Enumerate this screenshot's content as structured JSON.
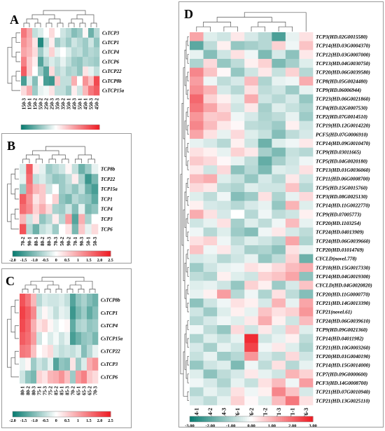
{
  "palette": [
    "#0b7d72",
    "#ffffff",
    "#ef1d25"
  ],
  "panels": [
    {
      "id": "A",
      "label": "A",
      "rows": [
        "CsTCP3",
        "CsTCP1",
        "CsTCP4",
        "CsTCP6",
        "CsTCP22",
        "CsTCP8b",
        "CsTCP15a"
      ],
      "cols": [
        "150-3",
        "150-1",
        "150-2",
        "550-2",
        "250-2",
        "250-3",
        "350-3",
        "350-2",
        "350-1",
        "450-3",
        "550-1",
        "450-1",
        "550-3",
        "450-2"
      ],
      "values": [
        [
          1.5,
          1.0,
          -0.5,
          -0.3,
          0.0,
          0.4,
          0.0,
          -0.4,
          -0.6,
          -1.0,
          -0.8,
          0.1,
          -1.2,
          -0.6
        ],
        [
          1.2,
          0.9,
          0.3,
          -1.8,
          -0.5,
          0.2,
          -0.8,
          -0.5,
          -0.8,
          -0.4,
          -0.6,
          -0.8,
          -0.4,
          -0.9
        ],
        [
          1.0,
          0.8,
          0.4,
          -0.8,
          -0.3,
          0.5,
          -0.2,
          0.0,
          -0.3,
          -0.6,
          -0.5,
          -0.8,
          -0.6,
          -0.7
        ],
        [
          1.4,
          0.6,
          0.2,
          -1.4,
          -0.6,
          -0.3,
          -0.5,
          -0.2,
          -0.5,
          -0.8,
          -0.9,
          -0.6,
          -0.7,
          -0.8
        ],
        [
          1.8,
          0.6,
          0.0,
          -0.8,
          -1.4,
          0.4,
          -0.6,
          -0.4,
          -0.7,
          -0.6,
          -0.9,
          0.3,
          -0.2,
          -0.5
        ],
        [
          -1.5,
          -0.3,
          -1.0,
          0.1,
          -1.5,
          -1.6,
          0.6,
          -0.5,
          -0.5,
          0.9,
          0.0,
          1.2,
          0.7,
          2.0
        ],
        [
          0.4,
          0.9,
          -0.8,
          -0.2,
          -0.1,
          0.3,
          -0.5,
          -0.5,
          -0.8,
          0.2,
          -0.4,
          0.8,
          1.5,
          1.8
        ]
      ],
      "scale_ticks": []
    },
    {
      "id": "B",
      "label": "B",
      "rows": [
        "TCP8b",
        "TCP22",
        "TCP15a",
        "TCP1",
        "TCP4",
        "TCP3",
        "TCP6"
      ],
      "cols": [
        "70-2",
        "90-1",
        "80-1",
        "80-2",
        "80-3",
        "70-3",
        "50-2",
        "90-2",
        "70-1",
        "90-3",
        "50-1",
        "50-3"
      ],
      "values": [
        [
          -0.3,
          1.8,
          0.2,
          -0.2,
          -0.8,
          -0.6,
          -0.4,
          0.1,
          -0.5,
          -1.2,
          -0.8,
          -0.2
        ],
        [
          -0.2,
          1.6,
          -0.5,
          -0.3,
          -0.6,
          -0.9,
          -0.8,
          -0.5,
          0.2,
          -0.7,
          -1.6,
          -1.1
        ],
        [
          -0.8,
          1.4,
          0.8,
          0.6,
          -0.4,
          0.0,
          -0.8,
          -0.6,
          -0.9,
          -0.5,
          -1.2,
          -1.5
        ],
        [
          1.8,
          1.2,
          0.3,
          0.6,
          0.0,
          0.5,
          -0.9,
          -1.1,
          -0.6,
          -0.8,
          -0.9,
          -1.3
        ],
        [
          1.6,
          1.3,
          0.5,
          0.9,
          0.4,
          -0.7,
          -0.8,
          -0.4,
          -1.0,
          -0.2,
          -1.1,
          -0.9
        ],
        [
          0.8,
          -0.4,
          0.3,
          -0.9,
          -0.6,
          0.2,
          -0.6,
          1.1,
          -1.4,
          0.9,
          -0.7,
          0.0
        ],
        [
          1.9,
          -0.6,
          -1.2,
          -0.5,
          -0.3,
          -0.8,
          0.0,
          0.3,
          -1.1,
          0.6,
          -0.2,
          0.4
        ]
      ],
      "scale_ticks": [
        "-2.0",
        "-1.5",
        "-1.0",
        "-0.5",
        "0",
        "0.5",
        "1",
        "1.5",
        "2.0",
        "2.5"
      ]
    },
    {
      "id": "C",
      "label": "C",
      "rows": [
        "CsTCP8b",
        "CsTCP1",
        "CsTCP4",
        "CsTCP15a",
        "CsTCP22",
        "CsTCP3",
        "CsTCP6"
      ],
      "cols": [
        "80-1",
        "80-2",
        "80-3",
        "75-1",
        "75-3",
        "75-2",
        "85-2",
        "85-1",
        "85-3",
        "70-2",
        "65-1",
        "65-3",
        "65-2",
        "70-3"
      ],
      "values": [
        [
          1.9,
          1.5,
          0.8,
          -0.6,
          -0.3,
          -0.4,
          -0.4,
          -0.3,
          -0.5,
          -1.4,
          -0.9,
          -0.7,
          -1.0,
          -1.2
        ],
        [
          2.1,
          1.8,
          1.3,
          -0.3,
          0.1,
          -0.2,
          -0.5,
          -0.2,
          -0.3,
          -1.6,
          -1.1,
          -0.8,
          -1.3,
          -1.0
        ],
        [
          2.0,
          1.7,
          0.9,
          0.3,
          0.5,
          0.1,
          -0.2,
          0.0,
          0.1,
          -1.3,
          -0.7,
          -0.6,
          -0.9,
          -0.8
        ],
        [
          1.8,
          1.6,
          1.1,
          -0.4,
          0.0,
          -0.3,
          -0.1,
          -0.4,
          -0.2,
          -1.5,
          -1.2,
          -0.9,
          -0.8,
          -1.1
        ],
        [
          1.5,
          1.4,
          0.7,
          0.0,
          0.2,
          0.4,
          -0.3,
          -0.5,
          -0.4,
          -0.5,
          -0.3,
          -1.0,
          -0.6,
          -0.2
        ],
        [
          -0.2,
          0.1,
          -0.8,
          -0.4,
          -0.6,
          -0.2,
          -1.4,
          -0.9,
          -1.0,
          0.3,
          -0.8,
          -0.3,
          0.9,
          1.2
        ],
        [
          -0.4,
          -0.9,
          -1.1,
          0.5,
          0.3,
          0.8,
          0.9,
          1.2,
          0.7,
          -0.8,
          1.1,
          1.4,
          0.6,
          0.4
        ]
      ],
      "scale_ticks": [
        "-2.0",
        "-1.5",
        "-1.0",
        "-0.5",
        "0",
        "0.5",
        "1",
        "1.5",
        "2.0",
        "2.5"
      ]
    },
    {
      "id": "D",
      "label": "D",
      "rows": [
        "TCP3(HD.02G0015580)",
        "TCP14(HD.03G0004370)",
        "TCP12(HD.03G0007000)",
        "TCP13(HD.04G0030750)",
        "TCP20(HD.06G0039580)",
        "TCP8(HD.05G0024480)",
        "TCP9(HD.06006944)",
        "TCP23(HD.06G0021860)",
        "TCP4(HD.02G0007530)",
        "TCP2(HD.07G0014510)",
        "TCP19(HD.12G0014220)",
        "PCF5(HD.07G0006910)",
        "TCP14(HD.09G0010470)",
        "TCP9(HD.03011665)",
        "TCP5(HD.04G0020180)",
        "TCP13(HD.01G0036060)",
        "TCP11(HD.06G0008700)",
        "TCP5(HD.15G0015760)",
        "TCP3(HD.08G0025130)",
        "TCP14(HD.11G0022770)",
        "TCP9(HD.07005773)",
        "TCP20(HD.1103254)",
        "TCP24(HD.04013909)",
        "TCP24(HD.06G0039660)",
        "TCP20(HD.01014769)",
        "CYCLD(novel.778)",
        "TCP18(HD.15G0017330)",
        "TCP14(HD.04G0019300)",
        "CYCLD(HD.04G0020820)",
        "TCP20(HD.11G0000770)",
        "TCP21(HD.14G0013390)",
        "TCP21(novel.61)",
        "TCP24(HD.06G0039610)",
        "TCP9(HD.09G0021360)",
        "TCP14(HD.04011982)",
        "TCP21(HD.10G0003260)",
        "TCP20(HD.01G0040190)",
        "TCP14(HD.15G0014000)",
        "TCP7(HD.09G0000600)",
        "PCF3(HD.14G0008700)",
        "TCP21(HD.07G0010940)",
        "TCP21(HD.13G0025110)"
      ],
      "cols": [
        "T14-1",
        "T14-2",
        "T14-3",
        "T6-1",
        "T6-2",
        "T1-2",
        "T1-3",
        "T1-1",
        "T6-3"
      ],
      "values": [
        [
          1.2,
          -0.4,
          -0.6,
          0.3,
          -0.5,
          -0.9,
          -2.2,
          -0.3,
          0.4
        ],
        [
          -2.0,
          -0.8,
          0.2,
          -1.3,
          -1.1,
          -0.9,
          0.6,
          -0.2,
          0.8
        ],
        [
          -0.3,
          -1.5,
          -0.6,
          0.4,
          -0.2,
          -1.6,
          -0.5,
          -1.4,
          0.3
        ],
        [
          -1.0,
          0.5,
          -1.3,
          -0.8,
          0.2,
          0.6,
          -1.6,
          -1.1,
          -0.4
        ],
        [
          1.6,
          0.8,
          0.1,
          -1.3,
          -0.6,
          0.3,
          -0.7,
          0.6,
          -0.9
        ],
        [
          1.3,
          -0.2,
          -0.8,
          -0.5,
          0.9,
          -1.0,
          -0.3,
          -0.2,
          1.1
        ],
        [
          1.5,
          1.0,
          -0.5,
          -0.9,
          0.4,
          -0.8,
          -0.6,
          -1.2,
          -0.3
        ],
        [
          2.0,
          0.6,
          0.2,
          -0.4,
          1.1,
          -0.6,
          -0.9,
          -0.5,
          -1.3
        ],
        [
          1.8,
          1.2,
          0.5,
          -0.6,
          0.3,
          -1.1,
          -0.4,
          -0.7,
          -1.0
        ],
        [
          1.4,
          0.7,
          0.8,
          -0.2,
          -0.5,
          -1.0,
          -0.8,
          -0.3,
          -1.2
        ],
        [
          1.6,
          0.9,
          0.3,
          0.1,
          -0.8,
          -0.9,
          -1.2,
          0.2,
          -0.6
        ],
        [
          1.2,
          0.4,
          -0.3,
          0.5,
          -0.4,
          -0.7,
          -1.5,
          -0.8,
          -0.5
        ],
        [
          -0.3,
          -0.5,
          -0.9,
          0.2,
          -0.6,
          -1.8,
          -0.4,
          -0.2,
          0.3
        ],
        [
          0.4,
          0.2,
          -0.3,
          0.6,
          0.3,
          -1.1,
          -1.6,
          -0.7,
          -0.9
        ],
        [
          0.7,
          0.5,
          0.1,
          -0.3,
          -0.8,
          -1.9,
          -1.1,
          -0.6,
          -0.2
        ],
        [
          0.3,
          -0.6,
          0.5,
          -1.4,
          -0.9,
          -1.6,
          -0.4,
          -0.5,
          0.4
        ],
        [
          0.9,
          1.1,
          -0.4,
          -0.7,
          -1.3,
          -0.5,
          -0.9,
          0.3,
          -0.6
        ],
        [
          0.5,
          0.3,
          -0.8,
          -1.0,
          -0.4,
          -0.6,
          -0.6,
          0.8,
          -0.9
        ],
        [
          -0.4,
          -0.8,
          -0.2,
          -1.5,
          -1.2,
          0.4,
          -1.0,
          -0.3,
          0.5
        ],
        [
          0.2,
          -0.5,
          -0.6,
          -0.9,
          -0.5,
          -0.3,
          -1.3,
          1.0,
          -0.4
        ],
        [
          1.1,
          0.4,
          -0.5,
          0.0,
          -0.9,
          -0.2,
          -0.8,
          -0.6,
          0.2
        ],
        [
          -0.6,
          -0.3,
          0.4,
          -1.1,
          -0.4,
          -0.8,
          -0.2,
          0.9,
          -0.3
        ],
        [
          -0.2,
          -0.9,
          -0.4,
          -1.2,
          -1.5,
          -0.2,
          0.3,
          -0.5,
          -0.8
        ],
        [
          0.4,
          0.6,
          -0.2,
          -0.8,
          -0.4,
          -0.6,
          -0.9,
          1.2,
          -1.0
        ],
        [
          0.8,
          -0.2,
          0.3,
          -0.5,
          -1.1,
          -1.0,
          -1.4,
          0.4,
          -0.3
        ],
        [
          -0.5,
          -0.4,
          -0.9,
          -0.6,
          -0.3,
          -1.3,
          -0.8,
          0.6,
          -1.8
        ],
        [
          -1.2,
          -0.6,
          -0.3,
          -0.2,
          0.4,
          0.2,
          0.5,
          0.9,
          1.1
        ],
        [
          -0.8,
          -1.0,
          0.2,
          -0.4,
          -0.6,
          0.6,
          0.8,
          1.2,
          -1.4
        ],
        [
          -0.4,
          -0.3,
          -0.6,
          -1.3,
          0.6,
          0.2,
          -1.2,
          -0.5,
          0.8
        ],
        [
          -0.3,
          0.2,
          1.3,
          -0.9,
          -0.2,
          -1.0,
          0.4,
          -0.8,
          -1.5
        ],
        [
          -1.4,
          -0.6,
          -0.2,
          0.4,
          0.2,
          -0.5,
          1.0,
          -0.3,
          1.2
        ],
        [
          -0.6,
          -1.2,
          -0.4,
          0.2,
          -0.3,
          0.8,
          0.4,
          0.6,
          1.4
        ],
        [
          -0.9,
          -0.5,
          -0.2,
          -0.4,
          0.3,
          1.1,
          0.2,
          -0.6,
          0.9
        ],
        [
          -0.2,
          -0.8,
          -1.3,
          0.5,
          -0.6,
          0.3,
          -0.5,
          0.7,
          -0.4
        ],
        [
          -1.0,
          -0.4,
          -0.7,
          -0.3,
          2.8,
          -0.6,
          -0.3,
          0.2,
          -0.8
        ],
        [
          -0.5,
          -1.1,
          -0.3,
          -0.6,
          2.5,
          -0.2,
          0.3,
          -0.4,
          -1.0
        ],
        [
          -0.7,
          -0.3,
          -1.2,
          -0.9,
          1.4,
          -0.5,
          -0.8,
          0.5,
          -0.6
        ],
        [
          -1.3,
          -0.6,
          -0.4,
          -1.6,
          -0.2,
          -0.8,
          0.4,
          -0.9,
          -0.3
        ],
        [
          -0.4,
          -1.4,
          -0.8,
          -0.5,
          0.3,
          -0.3,
          -0.6,
          1.0,
          0.6
        ],
        [
          -0.2,
          -0.5,
          -1.0,
          -0.3,
          -0.7,
          0.4,
          0.9,
          -0.2,
          1.3
        ],
        [
          -0.9,
          -0.3,
          -0.6,
          0.4,
          -0.2,
          0.2,
          1.6,
          0.8,
          -0.5
        ],
        [
          -0.5,
          -0.8,
          -0.3,
          0.6,
          0.1,
          -0.4,
          0.9,
          1.8,
          0.4
        ]
      ],
      "scale_ticks": [
        "-3.00",
        "-2.00",
        "-1.00",
        "0.00",
        "1.00",
        "2.00",
        "3.00"
      ]
    }
  ]
}
